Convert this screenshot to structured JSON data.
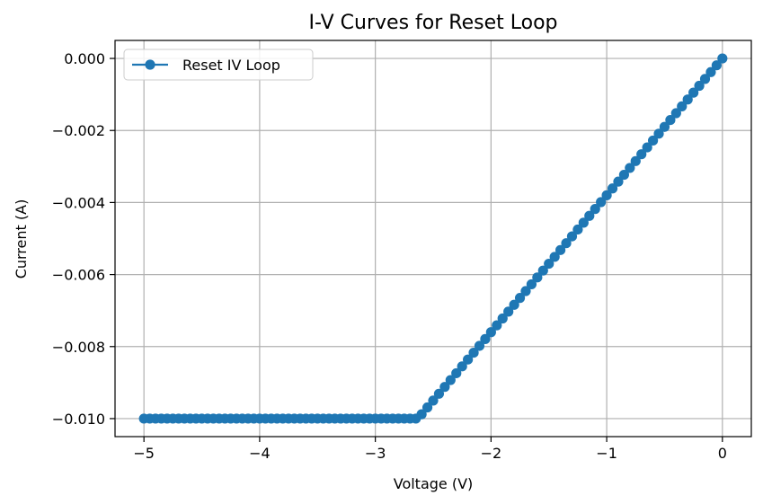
{
  "chart_data": {
    "type": "line",
    "title": "I-V Curves for Reset Loop",
    "xlabel": "Voltage (V)",
    "ylabel": "Current (A)",
    "xlim": [
      -5.25,
      0.25
    ],
    "ylim": [
      -0.0105,
      0.0005
    ],
    "xticks": [
      -5,
      -4,
      -3,
      -2,
      -1,
      0
    ],
    "xtick_labels": [
      "−5",
      "−4",
      "−3",
      "−2",
      "−1",
      "0"
    ],
    "yticks": [
      0.0,
      -0.002,
      -0.004,
      -0.006,
      -0.008,
      -0.01
    ],
    "ytick_labels": [
      "0.000",
      "−0.002",
      "−0.004",
      "−0.006",
      "−0.008",
      "−0.010"
    ],
    "grid": true,
    "legend_position": "top-left",
    "series": [
      {
        "name": "Reset IV Loop",
        "color": "#1f77b4",
        "marker": "circle",
        "x": [
          0.0,
          -0.05,
          -0.1,
          -0.15,
          -0.2,
          -0.25,
          -0.3,
          -0.35,
          -0.4,
          -0.45,
          -0.5,
          -0.55,
          -0.6,
          -0.65,
          -0.7,
          -0.75,
          -0.8,
          -0.85,
          -0.9,
          -0.95,
          -1.0,
          -1.05,
          -1.1,
          -1.15,
          -1.2,
          -1.25,
          -1.3,
          -1.35,
          -1.4,
          -1.45,
          -1.5,
          -1.55,
          -1.6,
          -1.65,
          -1.7,
          -1.75,
          -1.8,
          -1.85,
          -1.9,
          -1.95,
          -2.0,
          -2.05,
          -2.1,
          -2.15,
          -2.2,
          -2.25,
          -2.3,
          -2.35,
          -2.4,
          -2.45,
          -2.5,
          -2.55,
          -2.6,
          -2.65,
          -2.7,
          -2.75,
          -2.8,
          -2.85,
          -2.9,
          -2.95,
          -3.0,
          -3.05,
          -3.1,
          -3.15,
          -3.2,
          -3.25,
          -3.3,
          -3.35,
          -3.4,
          -3.45,
          -3.5,
          -3.55,
          -3.6,
          -3.65,
          -3.7,
          -3.75,
          -3.8,
          -3.85,
          -3.9,
          -3.95,
          -4.0,
          -4.05,
          -4.1,
          -4.15,
          -4.2,
          -4.25,
          -4.3,
          -4.35,
          -4.4,
          -4.45,
          -4.5,
          -4.55,
          -4.6,
          -4.65,
          -4.7,
          -4.75,
          -4.8,
          -4.85,
          -4.9,
          -4.95,
          -5.0
        ],
        "y": [
          0.0,
          -0.00019,
          -0.00038,
          -0.00057,
          -0.00076,
          -0.00095,
          -0.00114,
          -0.00133,
          -0.00152,
          -0.00171,
          -0.0019,
          -0.00209,
          -0.00228,
          -0.00247,
          -0.00266,
          -0.00285,
          -0.00304,
          -0.00323,
          -0.00342,
          -0.00361,
          -0.0038,
          -0.00399,
          -0.00418,
          -0.00437,
          -0.00456,
          -0.00475,
          -0.00494,
          -0.00513,
          -0.00532,
          -0.00551,
          -0.0057,
          -0.00589,
          -0.00608,
          -0.00627,
          -0.00646,
          -0.00665,
          -0.00684,
          -0.00703,
          -0.00722,
          -0.00741,
          -0.0076,
          -0.00779,
          -0.00798,
          -0.00817,
          -0.00836,
          -0.00855,
          -0.00874,
          -0.00893,
          -0.00912,
          -0.00931,
          -0.0095,
          -0.00969,
          -0.00988,
          -0.01,
          -0.01,
          -0.01,
          -0.01,
          -0.01,
          -0.01,
          -0.01,
          -0.01,
          -0.01,
          -0.01,
          -0.01,
          -0.01,
          -0.01,
          -0.01,
          -0.01,
          -0.01,
          -0.01,
          -0.01,
          -0.01,
          -0.01,
          -0.01,
          -0.01,
          -0.01,
          -0.01,
          -0.01,
          -0.01,
          -0.01,
          -0.01,
          -0.01,
          -0.01,
          -0.01,
          -0.01,
          -0.01,
          -0.01,
          -0.01,
          -0.01,
          -0.01,
          -0.01,
          -0.01,
          -0.01,
          -0.01,
          -0.01,
          -0.01,
          -0.01,
          -0.01,
          -0.01,
          -0.01,
          -0.01
        ]
      }
    ]
  }
}
